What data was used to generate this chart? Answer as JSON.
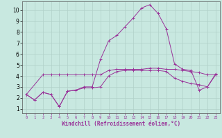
{
  "xlabel": "Windchill (Refroidissement éolien,°C)",
  "background_color": "#c8e8e0",
  "grid_color": "#b0d0c8",
  "line_color": "#993399",
  "x_ticks": [
    0,
    1,
    2,
    3,
    4,
    5,
    6,
    7,
    8,
    9,
    10,
    11,
    12,
    13,
    14,
    15,
    16,
    17,
    18,
    19,
    20,
    21,
    22,
    23
  ],
  "y_ticks": [
    1,
    2,
    3,
    4,
    5,
    6,
    7,
    8,
    9,
    10
  ],
  "xlim": [
    -0.5,
    23.5
  ],
  "ylim": [
    0.6,
    10.8
  ],
  "lines": [
    {
      "x": [
        0,
        1,
        2,
        3,
        4,
        5,
        6,
        7,
        8,
        9,
        10,
        11,
        12,
        13,
        14,
        15,
        16,
        17,
        18,
        19,
        20,
        21,
        22,
        23
      ],
      "y": [
        2.3,
        1.8,
        2.5,
        2.3,
        1.2,
        2.6,
        2.7,
        3.0,
        3.0,
        5.5,
        7.2,
        7.7,
        8.5,
        9.3,
        10.2,
        10.5,
        9.7,
        8.3,
        5.1,
        4.6,
        4.5,
        2.7,
        3.0,
        4.2
      ]
    },
    {
      "x": [
        0,
        1,
        2,
        3,
        4,
        5,
        6,
        7,
        8,
        9,
        10,
        11,
        12,
        13,
        14,
        15,
        16,
        17,
        18,
        19,
        20,
        21,
        22,
        23
      ],
      "y": [
        2.3,
        1.8,
        2.5,
        2.3,
        1.2,
        2.6,
        2.7,
        2.9,
        2.9,
        3.0,
        4.0,
        4.4,
        4.5,
        4.5,
        4.5,
        4.5,
        4.5,
        4.4,
        3.8,
        3.5,
        3.3,
        3.2,
        3.0,
        4.1
      ]
    },
    {
      "x": [
        0,
        2,
        3,
        4,
        5,
        6,
        7,
        8,
        9,
        10,
        11,
        12,
        13,
        14,
        15,
        16,
        17,
        18,
        19,
        20,
        21,
        22,
        23
      ],
      "y": [
        2.3,
        4.1,
        4.1,
        4.1,
        4.1,
        4.1,
        4.1,
        4.1,
        4.1,
        4.5,
        4.6,
        4.6,
        4.6,
        4.6,
        4.7,
        4.7,
        4.6,
        4.6,
        4.5,
        4.4,
        4.3,
        4.1,
        4.1
      ]
    }
  ]
}
